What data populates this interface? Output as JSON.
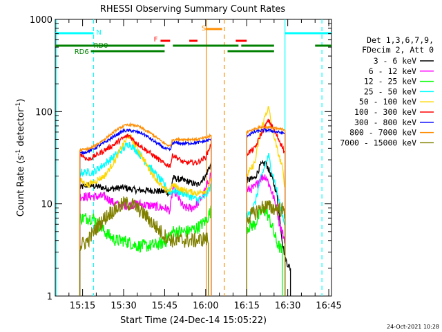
{
  "chart_data": {
    "type": "line",
    "title": "RHESSI Observing Summary Count Rates",
    "xlabel": "Start Time (24-Dec-14 15:05:22)",
    "ylabel": "Count Rate (s",
    "ylabel_sup": "-1",
    "ylabel_tail": "detector",
    "ylabel_sup2": "-1",
    "ylabel_close": ")",
    "yscale": "log",
    "ylim": [
      1,
      1000
    ],
    "xlim_minutes": [
      0,
      101
    ],
    "yticks": [
      {
        "v": 1,
        "label": "1"
      },
      {
        "v": 10,
        "label": "10"
      },
      {
        "v": 100,
        "label": "100"
      },
      {
        "v": 1000,
        "label": "1000"
      }
    ],
    "xticks": [
      {
        "t": 10,
        "label": "15:15"
      },
      {
        "t": 25,
        "label": "15:30"
      },
      {
        "t": 40,
        "label": "15:45"
      },
      {
        "t": 55,
        "label": "16:00"
      },
      {
        "t": 70,
        "label": "16:15"
      },
      {
        "t": 85,
        "label": "16:30"
      },
      {
        "t": 100,
        "label": "16:45"
      }
    ],
    "header": [
      "Det 1,3,6,7,9,",
      "FDecim 2, Att 0"
    ],
    "series": [
      {
        "name": "3 - 6 keV",
        "color": "#000000",
        "noise": 0.05,
        "segs": [
          [
            [
              9,
              15
            ],
            [
              12,
              16
            ],
            [
              20,
              14.5
            ],
            [
              25,
              15
            ],
            [
              30,
              14
            ],
            [
              35,
              14
            ],
            [
              40,
              13.5
            ],
            [
              42,
              13
            ],
            [
              43,
              19
            ],
            [
              47,
              18
            ],
            [
              52,
              16
            ],
            [
              55,
              20
            ],
            [
              56,
              24
            ],
            [
              57,
              27
            ]
          ],
          [
            [
              70,
              18
            ],
            [
              73,
              19
            ],
            [
              75,
              26
            ],
            [
              77,
              28
            ],
            [
              79,
              20
            ],
            [
              81,
              13
            ],
            [
              82,
              7
            ],
            [
              83,
              4
            ],
            [
              84,
              2.6
            ],
            [
              85,
              2.2
            ],
            [
              86,
              2
            ]
          ]
        ]
      },
      {
        "name": "6 - 12 keV",
        "color": "#ff00ff",
        "noise": 0.07,
        "segs": [
          [
            [
              9,
              12
            ],
            [
              13,
              12
            ],
            [
              18,
              12
            ],
            [
              22,
              10
            ],
            [
              25,
              9.5
            ],
            [
              30,
              10
            ],
            [
              35,
              9.5
            ],
            [
              40,
              9
            ],
            [
              42,
              8.5
            ],
            [
              43,
              15
            ],
            [
              47,
              9
            ],
            [
              50,
              9
            ],
            [
              52,
              10
            ],
            [
              55,
              14
            ],
            [
              57,
              22
            ]
          ],
          [
            [
              70,
              14
            ],
            [
              73,
              15
            ],
            [
              75,
              19
            ],
            [
              77,
              20
            ],
            [
              79,
              14
            ],
            [
              81,
              9
            ],
            [
              82,
              6
            ],
            [
              84,
              4
            ]
          ]
        ]
      },
      {
        "name": "12 - 25 keV",
        "color": "#00ff00",
        "noise": 0.1,
        "segs": [
          [
            [
              9,
              7
            ],
            [
              14,
              7
            ],
            [
              18,
              5
            ],
            [
              22,
              4
            ],
            [
              25,
              4
            ],
            [
              30,
              3.5
            ],
            [
              35,
              3.5
            ],
            [
              40,
              3.8
            ],
            [
              43,
              5
            ],
            [
              48,
              5
            ],
            [
              52,
              5.5
            ],
            [
              55,
              6.5
            ],
            [
              57,
              8.5
            ]
          ],
          [
            [
              70,
              5.5
            ],
            [
              73,
              6
            ],
            [
              75,
              8
            ],
            [
              77,
              8.5
            ],
            [
              79,
              6
            ],
            [
              81,
              3.8
            ],
            [
              83,
              3
            ]
          ]
        ]
      },
      {
        "name": "25 - 50 keV",
        "color": "#00ffff",
        "noise": 0.06,
        "segs": [
          [
            [
              9,
              22
            ],
            [
              14,
              22
            ],
            [
              20,
              30
            ],
            [
              25,
              40
            ],
            [
              27,
              45
            ],
            [
              30,
              37
            ],
            [
              35,
              24
            ],
            [
              40,
              16
            ],
            [
              42,
              13
            ],
            [
              43,
              14
            ],
            [
              47,
              13
            ],
            [
              52,
              11
            ],
            [
              55,
              12
            ],
            [
              57,
              16
            ]
          ],
          [
            [
              70,
              7
            ],
            [
              73,
              10
            ],
            [
              75,
              18
            ],
            [
              77,
              28
            ],
            [
              78,
              33
            ],
            [
              79,
              24
            ],
            [
              81,
              14
            ],
            [
              82,
              10
            ],
            [
              84,
              6
            ]
          ]
        ]
      },
      {
        "name": "50 - 100 keV",
        "color": "#ffd700",
        "noise": 0.05,
        "segs": [
          [
            [
              9,
              18
            ],
            [
              12,
              16
            ],
            [
              18,
              20
            ],
            [
              22,
              30
            ],
            [
              25,
              45
            ],
            [
              27,
              55
            ],
            [
              30,
              40
            ],
            [
              35,
              22
            ],
            [
              40,
              14
            ],
            [
              42,
              14
            ],
            [
              43,
              16
            ],
            [
              47,
              14
            ],
            [
              52,
              13
            ],
            [
              55,
              14
            ],
            [
              57,
              18
            ]
          ],
          [
            [
              70,
              20
            ],
            [
              73,
              28
            ],
            [
              75,
              60
            ],
            [
              77,
              95
            ],
            [
              78,
              110
            ],
            [
              79,
              75
            ],
            [
              81,
              40
            ],
            [
              83,
              25
            ],
            [
              84,
              15
            ]
          ]
        ]
      },
      {
        "name": "100 - 300 keV",
        "color": "#ff0000",
        "noise": 0.04,
        "segs": [
          [
            [
              9,
              35
            ],
            [
              12,
              30
            ],
            [
              18,
              38
            ],
            [
              22,
              45
            ],
            [
              25,
              52
            ],
            [
              27,
              55
            ],
            [
              30,
              45
            ],
            [
              35,
              35
            ],
            [
              40,
              27
            ],
            [
              42,
              26
            ],
            [
              43,
              34
            ],
            [
              47,
              28
            ],
            [
              52,
              28
            ],
            [
              55,
              32
            ],
            [
              57,
              45
            ]
          ],
          [
            [
              70,
              35
            ],
            [
              73,
              40
            ],
            [
              75,
              55
            ],
            [
              77,
              72
            ],
            [
              78,
              80
            ],
            [
              79,
              72
            ],
            [
              81,
              55
            ],
            [
              83,
              42
            ],
            [
              84,
              35
            ]
          ]
        ]
      },
      {
        "name": "300 - 800 keV",
        "color": "#0000ff",
        "noise": 0.025,
        "segs": [
          [
            [
              9,
              35
            ],
            [
              13,
              38
            ],
            [
              18,
              46
            ],
            [
              22,
              55
            ],
            [
              25,
              62
            ],
            [
              28,
              62
            ],
            [
              32,
              58
            ],
            [
              36,
              48
            ],
            [
              40,
              40
            ],
            [
              42,
              38
            ],
            [
              43,
              46
            ],
            [
              47,
              45
            ],
            [
              52,
              46
            ],
            [
              55,
              48
            ],
            [
              57,
              50
            ]
          ],
          [
            [
              70,
              55
            ],
            [
              73,
              60
            ],
            [
              75,
              62
            ],
            [
              77,
              63
            ],
            [
              79,
              62
            ],
            [
              81,
              60
            ],
            [
              84,
              58
            ]
          ]
        ]
      },
      {
        "name": "800 - 7000 keV",
        "color": "#ff8c00",
        "noise": 0.02,
        "segs": [
          [
            [
              9,
              38
            ],
            [
              13,
              40
            ],
            [
              18,
              50
            ],
            [
              22,
              62
            ],
            [
              25,
              70
            ],
            [
              27,
              72
            ],
            [
              30,
              70
            ],
            [
              35,
              58
            ],
            [
              40,
              45
            ],
            [
              42,
              42
            ],
            [
              43,
              50
            ],
            [
              47,
              50
            ],
            [
              52,
              50
            ],
            [
              55,
              52
            ],
            [
              57,
              55
            ]
          ],
          [
            [
              70,
              60
            ],
            [
              73,
              65
            ],
            [
              75,
              68
            ],
            [
              77,
              68
            ],
            [
              79,
              67
            ],
            [
              81,
              65
            ],
            [
              84,
              64
            ]
          ]
        ]
      },
      {
        "name": "7000 - 15000 keV",
        "color": "#808000",
        "noise": 0.12,
        "segs": [
          [
            [
              9,
              3.5
            ],
            [
              12,
              4
            ],
            [
              16,
              6
            ],
            [
              20,
              8
            ],
            [
              25,
              10
            ],
            [
              28,
              10
            ],
            [
              32,
              8
            ],
            [
              36,
              6
            ],
            [
              40,
              4.5
            ],
            [
              43,
              4
            ],
            [
              47,
              4
            ],
            [
              52,
              4
            ],
            [
              55,
              4.2
            ],
            [
              56,
              4
            ]
          ],
          [
            [
              70,
              7
            ],
            [
              73,
              8
            ],
            [
              75,
              9
            ],
            [
              77,
              9.5
            ],
            [
              79,
              9
            ],
            [
              81,
              9
            ],
            [
              83,
              8.5
            ],
            [
              84,
              8
            ]
          ]
        ]
      }
    ],
    "flags": [
      {
        "label": "N",
        "color": "#00ffff",
        "y": 1,
        "labelX": 15,
        "segs": [
          [
            0,
            14
          ],
          [
            84,
            101
          ]
        ]
      },
      {
        "label": "S",
        "color": "#ff8c00",
        "y": 2,
        "labelX": 53.5,
        "segs": [
          [
            55,
            61
          ]
        ]
      },
      {
        "label": "F",
        "color": "#ff0000",
        "y": 3,
        "labelX": 36,
        "segs": [
          [
            38.5,
            42
          ],
          [
            49,
            52
          ],
          [
            66,
            70
          ]
        ]
      },
      {
        "label": "RD0",
        "color": "#008000",
        "y": 4,
        "labelX": 14,
        "segs": [
          [
            0,
            40
          ],
          [
            43,
            67
          ],
          [
            68,
            80
          ],
          [
            95,
            101
          ]
        ]
      },
      {
        "label": "RD6",
        "color": "#008000",
        "y": 5,
        "labelX": 7,
        "segs": [
          [
            13,
            40
          ],
          [
            63,
            80
          ]
        ]
      }
    ],
    "vlines": [
      {
        "t": 0.3,
        "color": "#00ffff",
        "style": "solid"
      },
      {
        "t": 14,
        "color": "#00ffff",
        "style": "dashed"
      },
      {
        "t": 55.2,
        "color": "#ff8c00",
        "style": "solid"
      },
      {
        "t": 61.8,
        "color": "#ff8c00",
        "style": "dashed"
      },
      {
        "t": 84,
        "color": "#00ffff",
        "style": "solid"
      },
      {
        "t": 97.5,
        "color": "#00ffff",
        "style": "dashed"
      }
    ],
    "footer_date": "24-Oct-2021 10:28"
  }
}
